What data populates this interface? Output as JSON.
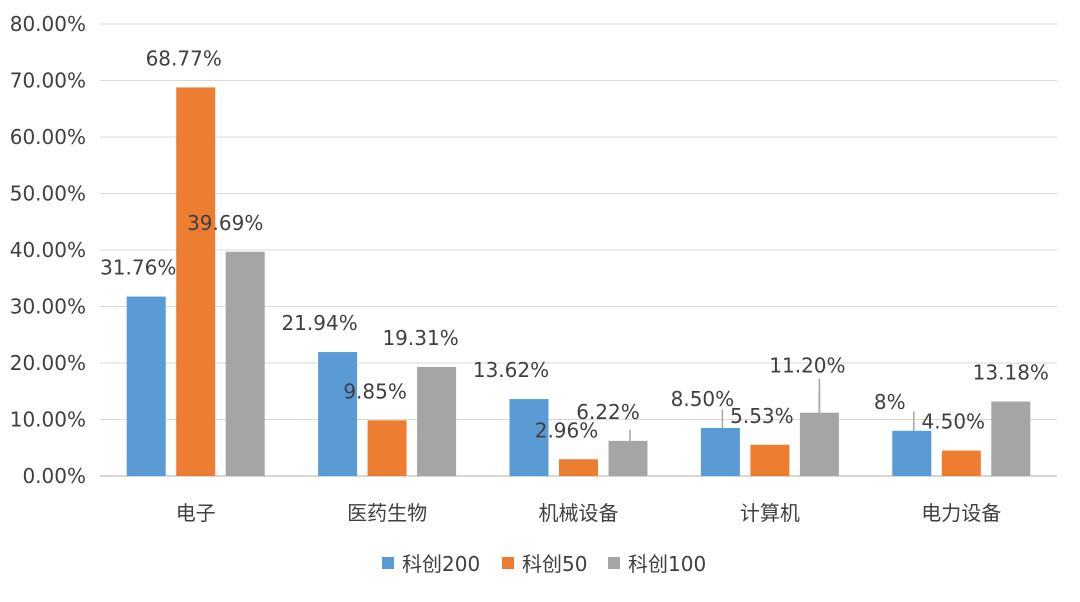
{
  "chart_data": {
    "type": "bar",
    "categories": [
      "电子",
      "医药生物",
      "机械设备",
      "计算机",
      "电力设备"
    ],
    "series": [
      {
        "name": "科创200",
        "color": "#5b9bd5",
        "values": [
          31.76,
          21.94,
          13.62,
          8.5,
          8
        ],
        "labels": [
          "31.76%",
          "21.94%",
          "13.62%",
          "8.50%",
          "8%"
        ]
      },
      {
        "name": "科创50",
        "color": "#ed7d31",
        "values": [
          68.77,
          9.85,
          2.96,
          5.53,
          4.5
        ],
        "labels": [
          "68.77%",
          "9.85%",
          "2.96%",
          "5.53%",
          "4.50%"
        ]
      },
      {
        "name": "科创100",
        "color": "#a5a5a5",
        "values": [
          39.69,
          19.31,
          6.22,
          11.2,
          13.18
        ],
        "labels": [
          "39.69%",
          "19.31%",
          "6.22%",
          "11.20%",
          "13.18%"
        ]
      }
    ],
    "y_ticks": [
      "0.00%",
      "10.00%",
      "20.00%",
      "30.00%",
      "40.00%",
      "50.00%",
      "60.00%",
      "70.00%",
      "80.00%"
    ],
    "ylim": [
      0,
      80
    ],
    "grid": true,
    "legend_position": "bottom",
    "title": "",
    "xlabel": "",
    "ylabel": ""
  }
}
